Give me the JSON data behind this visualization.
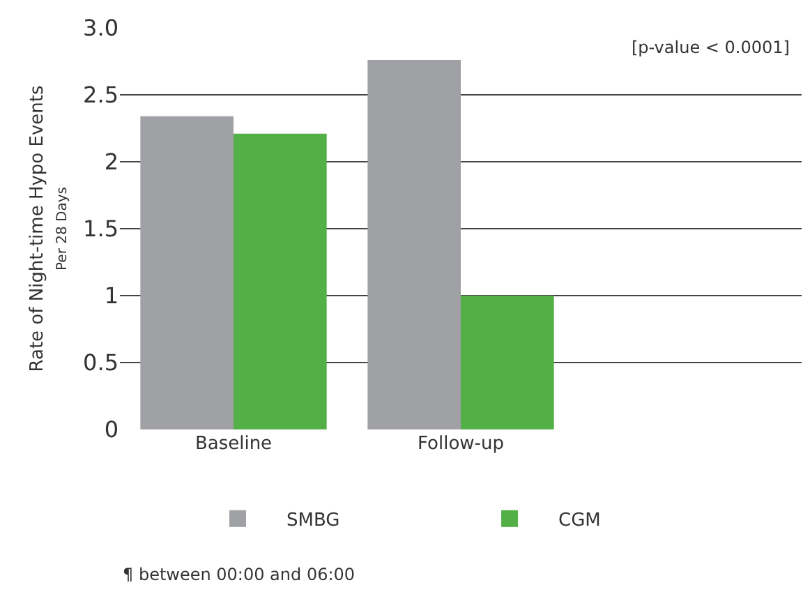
{
  "chart_data": {
    "type": "bar",
    "categories": [
      "Baseline",
      "Follow-up",
      null
    ],
    "series": [
      {
        "name": "SMBG",
        "color": "#a0a1a5",
        "values": [
          2.34,
          2.76,
          null
        ]
      },
      {
        "name": "CGM",
        "color": "#52b046",
        "values": [
          2.21,
          1.0,
          null
        ]
      }
    ],
    "ylabel": "Rate of Night-time Hypo Events\nPer 28 Days",
    "ylim": [
      0,
      3.0
    ],
    "yticks": [
      0,
      0.5,
      1,
      1.5,
      2,
      2.5,
      {
        "value": 3.0,
        "label": "3.0"
      }
    ],
    "grid": "y",
    "legend": "bottom",
    "annotations": [
      "[p-value < 0.0001]",
      "¶ between 00:00 and 06:00"
    ]
  }
}
